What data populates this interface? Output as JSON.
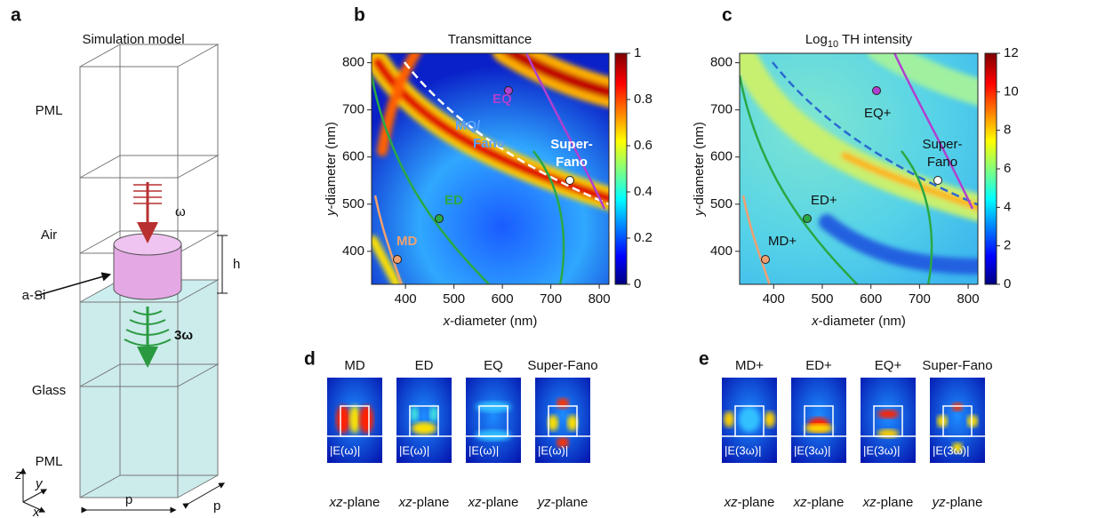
{
  "figure": {
    "a": {
      "label": "a",
      "title": "Simulation model",
      "layers": [
        "PML",
        "Air",
        "a-Si",
        "Glass",
        "PML"
      ],
      "omega": "ω",
      "three_omega": "3ω",
      "height": "h",
      "period_x": "p",
      "period_y": "p",
      "axis_z": "z",
      "axis_y": "y",
      "axis_x": "x"
    },
    "b": {
      "label": "b",
      "title": "Transmittance",
      "xlabel": {
        "var": "x",
        "rest": "-diameter (nm)"
      },
      "ylabel": {
        "var": "y",
        "rest": "-diameter (nm)"
      },
      "xlim": [
        330,
        820
      ],
      "ylim": [
        330,
        820
      ],
      "xticks": [
        400,
        500,
        600,
        700,
        800
      ],
      "yticks": [
        400,
        500,
        600,
        700,
        800
      ],
      "colorbar_lim": [
        0,
        1
      ],
      "colorbar_ticks": [
        0,
        0.2,
        0.4,
        0.6,
        0.8,
        1
      ],
      "annotations": {
        "eq": "EQ",
        "mq": "MQ/",
        "fano": "Fano",
        "super1": "Super-",
        "super2": "Fano",
        "ed": "ED",
        "md": "MD"
      }
    },
    "c": {
      "label": "c",
      "title": {
        "a": "Log",
        "sub": "10",
        "b": " TH intensity"
      },
      "xlabel": {
        "var": "x",
        "rest": "-diameter (nm)"
      },
      "ylabel": {
        "var": "y",
        "rest": "-diameter (nm)"
      },
      "xlim": [
        330,
        820
      ],
      "ylim": [
        330,
        820
      ],
      "xticks": [
        400,
        500,
        600,
        700,
        800
      ],
      "yticks": [
        400,
        500,
        600,
        700,
        800
      ],
      "colorbar_lim": [
        0,
        12
      ],
      "colorbar_ticks": [
        0,
        2,
        4,
        6,
        8,
        10,
        12
      ],
      "annotations": {
        "eq": "EQ+",
        "super1": "Super-",
        "super2": "Fano",
        "ed": "ED+",
        "md": "MD+"
      }
    },
    "d": {
      "label": "d",
      "maps": [
        {
          "title": "MD",
          "field": "|E(ω)|",
          "plane_var": "xz",
          "plane_rest": "-plane"
        },
        {
          "title": "ED",
          "field": "|E(ω)|",
          "plane_var": "xz",
          "plane_rest": "-plane"
        },
        {
          "title": "EQ",
          "field": "|E(ω)|",
          "plane_var": "xz",
          "plane_rest": "-plane"
        },
        {
          "title": "Super-Fano",
          "field": "|E(ω)|",
          "plane_var": "yz",
          "plane_rest": "-plane"
        }
      ]
    },
    "e": {
      "label": "e",
      "maps": [
        {
          "title": "MD+",
          "field": "|E(3ω)|",
          "plane_var": "xz",
          "plane_rest": "-plane"
        },
        {
          "title": "ED+",
          "field": "|E(3ω)|",
          "plane_var": "xz",
          "plane_rest": "-plane"
        },
        {
          "title": "EQ+",
          "field": "|E(3ω)|",
          "plane_var": "xz",
          "plane_rest": "-plane"
        },
        {
          "title": "Super-Fano",
          "field": "|E(3ω)|",
          "plane_var": "yz",
          "plane_rest": "-plane"
        }
      ]
    }
  }
}
